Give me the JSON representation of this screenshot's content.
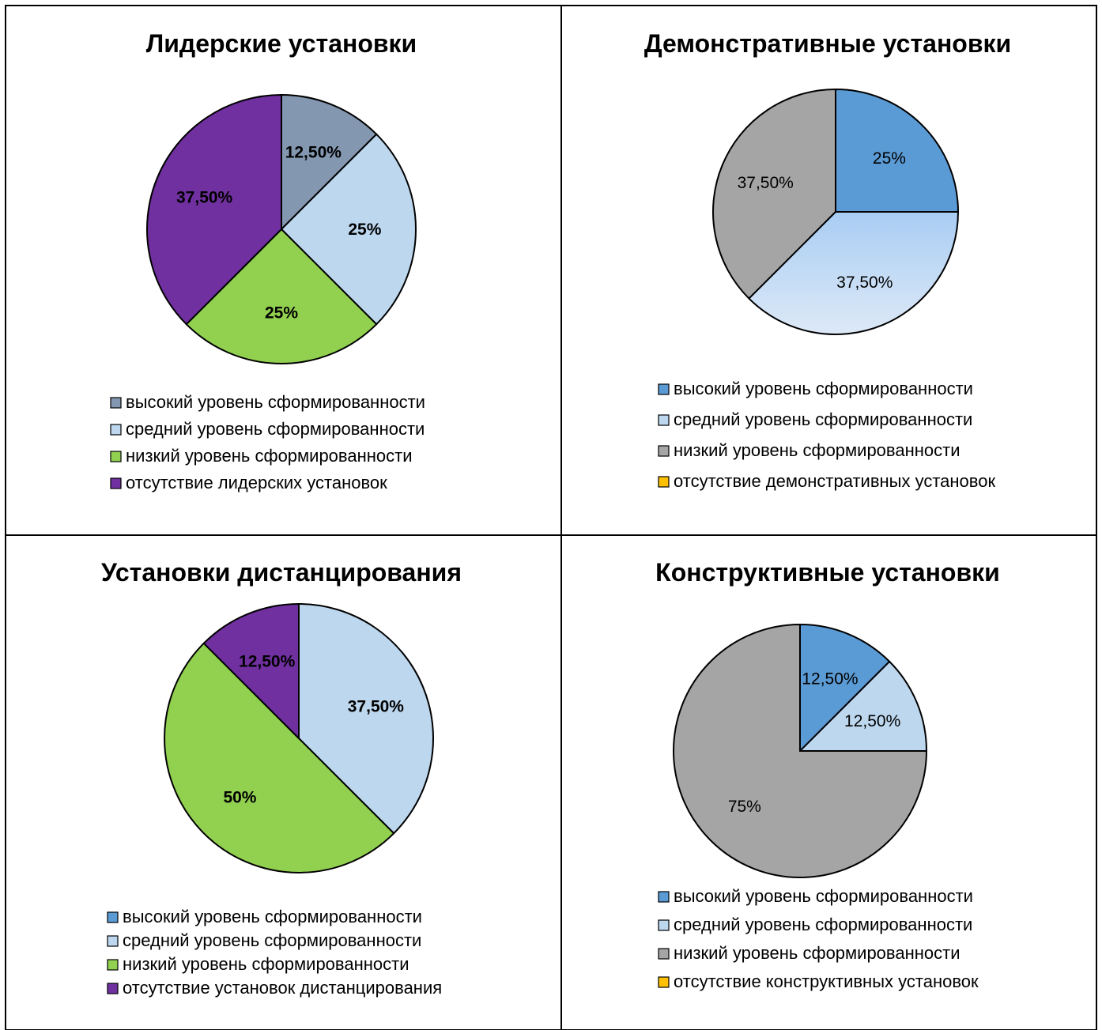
{
  "chart_data": [
    {
      "type": "pie",
      "title": "Лидерские установки",
      "labels_bold": true,
      "categories": [
        "высокий уровень сформированности",
        "средний уровень сформированности",
        "низкий уровень сформированности",
        "отсутствие лидерских установок"
      ],
      "values": [
        12.5,
        25,
        25,
        37.5
      ],
      "data_labels": [
        "12,50%",
        "25%",
        "25%",
        "37,50%"
      ],
      "colors": [
        "#8497b0",
        "#bdd7ee",
        "#92d050",
        "#7030a0"
      ],
      "legend": "bottom"
    },
    {
      "type": "pie",
      "title": "Демонстративные установки",
      "labels_bold": false,
      "categories": [
        "высокий уровень сформированности",
        "средний уровень сформированности",
        "низкий уровень сформированности",
        "отсутствие демонстративных установок"
      ],
      "values": [
        25,
        37.5,
        37.5,
        0
      ],
      "data_labels": [
        "25%",
        "37,50%",
        "37,50%",
        ""
      ],
      "colors": [
        "#5b9bd5",
        "#bdd7ee",
        "#a5a5a5",
        "#ffc000"
      ],
      "legend": "bottom"
    },
    {
      "type": "pie",
      "title": "Установки дистанцирования",
      "labels_bold": true,
      "categories": [
        "высокий уровень сформированности",
        "средний уровень сформированности",
        "низкий уровень сформированности",
        "отсутствие установок дистанцирования"
      ],
      "values": [
        0,
        37.5,
        50,
        12.5
      ],
      "data_labels": [
        "",
        "37,50%",
        "50%",
        "12,50%"
      ],
      "colors": [
        "#5b9bd5",
        "#bdd7ee",
        "#92d050",
        "#7030a0"
      ],
      "legend": "bottom"
    },
    {
      "type": "pie",
      "title": "Конструктивные установки",
      "labels_bold": false,
      "categories": [
        "высокий уровень сформированности",
        "средний уровень сформированности",
        "низкий уровень сформированности",
        "отсутствие конструктивных установок"
      ],
      "values": [
        12.5,
        12.5,
        75,
        0
      ],
      "data_labels": [
        "12,50%",
        "12,50%",
        "75%",
        ""
      ],
      "colors": [
        "#5b9bd5",
        "#bdd7ee",
        "#a5a5a5",
        "#ffc000"
      ],
      "legend": "bottom"
    }
  ]
}
